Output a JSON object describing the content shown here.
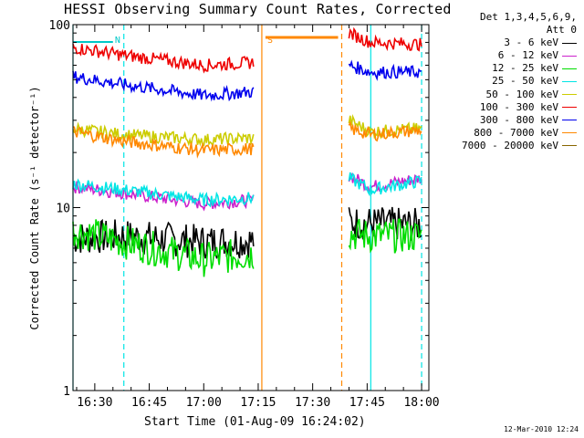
{
  "chart_data": {
    "type": "line",
    "title": "HESSI Observing Summary Count Rates, Corrected",
    "xlabel": "Start Time (01-Aug-09 16:24:02)",
    "ylabel": "Corrected Count Rate (s⁻¹ detector⁻¹)",
    "yscale": "log",
    "ylim": [
      1,
      100
    ],
    "xlim": [
      "16:24",
      "18:02"
    ],
    "x_ticks": [
      "16:30",
      "16:45",
      "17:00",
      "17:15",
      "17:30",
      "17:45",
      "18:00"
    ],
    "y_ticks": [
      "1",
      "10",
      "100"
    ],
    "legend_header": [
      "Det 1,3,4,5,6,9,",
      "Att 0"
    ],
    "legend_position": "right",
    "series": [
      {
        "name": "3 - 6 keV",
        "color": "#000000",
        "x": [
          "16:24",
          "16:38",
          "17:00",
          "17:14",
          "17:40",
          "17:46",
          "18:00"
        ],
        "y": [
          6.8,
          7.0,
          6.5,
          6.6,
          8.3,
          8.2,
          8.0
        ]
      },
      {
        "name": "6 - 12 keV",
        "color": "#cc22cc",
        "x": [
          "16:24",
          "16:38",
          "17:00",
          "17:14",
          "17:40",
          "17:46",
          "18:00"
        ],
        "y": [
          13.0,
          12.0,
          10.5,
          11.0,
          15.0,
          13.0,
          14.5
        ]
      },
      {
        "name": "12 - 25 keV",
        "color": "#00dd00",
        "x": [
          "16:24",
          "16:38",
          "17:00",
          "17:14",
          "17:40",
          "17:46",
          "18:00"
        ],
        "y": [
          7.5,
          6.5,
          5.2,
          5.6,
          7.2,
          7.0,
          7.0
        ]
      },
      {
        "name": "25 - 50 keV",
        "color": "#00e5e5",
        "x": [
          "16:24",
          "16:38",
          "17:00",
          "17:14",
          "17:40",
          "17:46",
          "18:00"
        ],
        "y": [
          13.5,
          12.5,
          11.0,
          11.3,
          14.5,
          12.5,
          14.0
        ]
      },
      {
        "name": "50 - 100 keV",
        "color": "#cccc00",
        "x": [
          "16:24",
          "16:38",
          "17:00",
          "17:14",
          "17:40",
          "17:46",
          "18:00"
        ],
        "y": [
          27.0,
          25.0,
          23.5,
          24.0,
          30.0,
          26.0,
          27.0
        ]
      },
      {
        "name": "100 - 300 keV",
        "color": "#ee0000",
        "x": [
          "16:24",
          "16:38",
          "17:00",
          "17:14",
          "17:40",
          "17:46",
          "18:00"
        ],
        "y": [
          75.0,
          68.0,
          60.0,
          62.0,
          90.0,
          80.0,
          78.0
        ]
      },
      {
        "name": "300 - 800 keV",
        "color": "#0000ee",
        "x": [
          "16:24",
          "16:38",
          "17:00",
          "17:14",
          "17:40",
          "17:46",
          "18:00"
        ],
        "y": [
          52.0,
          47.0,
          41.0,
          43.0,
          60.0,
          55.0,
          55.0
        ]
      },
      {
        "name": "800 - 7000 keV",
        "color": "#ff8800",
        "x": [
          "16:24",
          "16:38",
          "17:00",
          "17:14",
          "17:40",
          "17:46",
          "18:00"
        ],
        "y": [
          26.0,
          23.0,
          20.5,
          21.0,
          27.0,
          25.0,
          26.5
        ]
      },
      {
        "name": "7000 - 20000 keV",
        "color": "#886600",
        "x": [],
        "y": []
      }
    ],
    "annotations": [
      {
        "text": "N",
        "color": "#00c8c8",
        "x": "16:33"
      },
      {
        "text": "S",
        "color": "#ff8800",
        "x": "17:15"
      }
    ],
    "vertical_lines": [
      {
        "x": "16:24",
        "color": "#00e5e5",
        "style": "solid"
      },
      {
        "x": "16:38",
        "color": "#00e5e5",
        "style": "dashed"
      },
      {
        "x": "17:16",
        "color": "#ff8800",
        "style": "solid"
      },
      {
        "x": "17:38",
        "color": "#ff8800",
        "style": "dashed"
      },
      {
        "x": "17:46",
        "color": "#00e5e5",
        "style": "solid"
      },
      {
        "x": "18:00",
        "color": "#00e5e5",
        "style": "dashed"
      }
    ],
    "grid": false
  },
  "timestamp": "12-Mar-2010 12:24"
}
